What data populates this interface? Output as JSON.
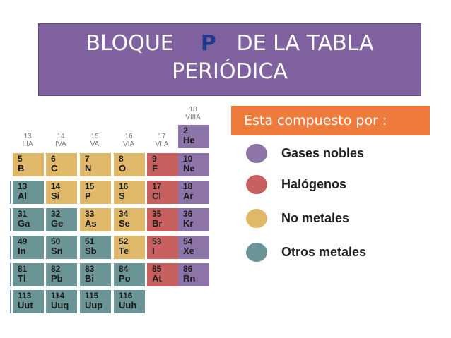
{
  "title": {
    "line1_pre": "BLOQUE",
    "line1_highlight": "P",
    "line1_post": "DE LA TABLA",
    "line2": "PERIÓDICA"
  },
  "subtitle": "Esta compuesto por :",
  "legend": [
    {
      "label": "Gases nobles",
      "color": "#8c74a8"
    },
    {
      "label": "Halógenos",
      "color": "#c96060"
    },
    {
      "label": "No metales",
      "color": "#e0b86a"
    },
    {
      "label": "Otros metales",
      "color": "#6a9496"
    }
  ],
  "groups": [
    {
      "num": "13",
      "name": "IIIA"
    },
    {
      "num": "14",
      "name": "IVA"
    },
    {
      "num": "15",
      "name": "VA"
    },
    {
      "num": "16",
      "name": "VIA"
    },
    {
      "num": "17",
      "name": "VIIA"
    },
    {
      "num": "18",
      "name": "VIIIA"
    }
  ],
  "elements": [
    {
      "num": "2",
      "sym": "He",
      "col": 5,
      "row": 0,
      "type": "purple"
    },
    {
      "num": "5",
      "sym": "B",
      "col": 0,
      "row": 1,
      "type": "yellow"
    },
    {
      "num": "6",
      "sym": "C",
      "col": 1,
      "row": 1,
      "type": "yellow"
    },
    {
      "num": "7",
      "sym": "N",
      "col": 2,
      "row": 1,
      "type": "yellow"
    },
    {
      "num": "8",
      "sym": "O",
      "col": 3,
      "row": 1,
      "type": "yellow"
    },
    {
      "num": "9",
      "sym": "F",
      "col": 4,
      "row": 1,
      "type": "red"
    },
    {
      "num": "10",
      "sym": "Ne",
      "col": 5,
      "row": 1,
      "type": "purple"
    },
    {
      "num": "13",
      "sym": "Al",
      "col": 0,
      "row": 2,
      "type": "teal"
    },
    {
      "num": "14",
      "sym": "Si",
      "col": 1,
      "row": 2,
      "type": "yellow"
    },
    {
      "num": "15",
      "sym": "P",
      "col": 2,
      "row": 2,
      "type": "yellow"
    },
    {
      "num": "16",
      "sym": "S",
      "col": 3,
      "row": 2,
      "type": "yellow"
    },
    {
      "num": "17",
      "sym": "Cl",
      "col": 4,
      "row": 2,
      "type": "red"
    },
    {
      "num": "18",
      "sym": "Ar",
      "col": 5,
      "row": 2,
      "type": "purple"
    },
    {
      "num": "31",
      "sym": "Ga",
      "col": 0,
      "row": 3,
      "type": "teal"
    },
    {
      "num": "32",
      "sym": "Ge",
      "col": 1,
      "row": 3,
      "type": "teal"
    },
    {
      "num": "33",
      "sym": "As",
      "col": 2,
      "row": 3,
      "type": "yellow"
    },
    {
      "num": "34",
      "sym": "Se",
      "col": 3,
      "row": 3,
      "type": "yellow"
    },
    {
      "num": "35",
      "sym": "Br",
      "col": 4,
      "row": 3,
      "type": "red"
    },
    {
      "num": "36",
      "sym": "Kr",
      "col": 5,
      "row": 3,
      "type": "purple"
    },
    {
      "num": "49",
      "sym": "In",
      "col": 0,
      "row": 4,
      "type": "teal"
    },
    {
      "num": "50",
      "sym": "Sn",
      "col": 1,
      "row": 4,
      "type": "teal"
    },
    {
      "num": "51",
      "sym": "Sb",
      "col": 2,
      "row": 4,
      "type": "teal"
    },
    {
      "num": "52",
      "sym": "Te",
      "col": 3,
      "row": 4,
      "type": "yellow"
    },
    {
      "num": "53",
      "sym": "I",
      "col": 4,
      "row": 4,
      "type": "red"
    },
    {
      "num": "54",
      "sym": "Xe",
      "col": 5,
      "row": 4,
      "type": "purple"
    },
    {
      "num": "81",
      "sym": "Tl",
      "col": 0,
      "row": 5,
      "type": "teal"
    },
    {
      "num": "82",
      "sym": "Pb",
      "col": 1,
      "row": 5,
      "type": "teal"
    },
    {
      "num": "83",
      "sym": "Bi",
      "col": 2,
      "row": 5,
      "type": "teal"
    },
    {
      "num": "84",
      "sym": "Po",
      "col": 3,
      "row": 5,
      "type": "teal"
    },
    {
      "num": "85",
      "sym": "At",
      "col": 4,
      "row": 5,
      "type": "red"
    },
    {
      "num": "86",
      "sym": "Rn",
      "col": 5,
      "row": 5,
      "type": "purple"
    },
    {
      "num": "113",
      "sym": "Uut",
      "col": 0,
      "row": 6,
      "type": "teal"
    },
    {
      "num": "114",
      "sym": "Uuq",
      "col": 1,
      "row": 6,
      "type": "teal"
    },
    {
      "num": "115",
      "sym": "Uup",
      "col": 2,
      "row": 6,
      "type": "teal"
    },
    {
      "num": "116",
      "sym": "Uuh",
      "col": 3,
      "row": 6,
      "type": "teal"
    }
  ]
}
